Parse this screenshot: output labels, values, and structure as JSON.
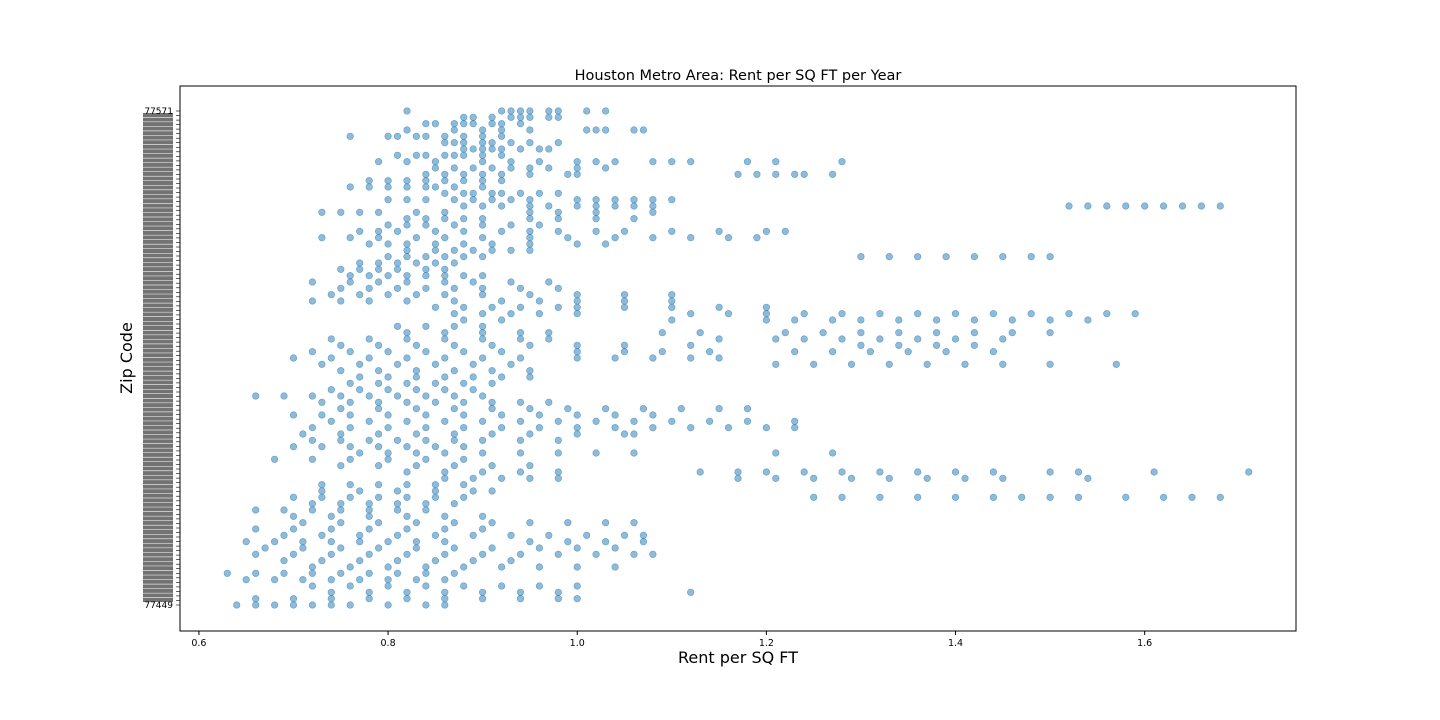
{
  "chart_data": {
    "type": "scatter",
    "title": "Houston Metro Area: Rent per SQ FT per Year",
    "xlabel": "Rent per SQ FT",
    "ylabel": "Zip Code",
    "xlim": [
      0.58,
      1.76
    ],
    "x_ticks": [
      "0.6",
      "0.8",
      "1.0",
      "1.2",
      "1.4",
      "1.6"
    ],
    "grid": false,
    "marker_color": "#1f77b4",
    "marker_alpha": 0.5,
    "visible_zip_labels": {
      "top": "77571",
      "bottom": "77449"
    },
    "zip_label_count": 110,
    "rows": [
      {
        "x": [
          0.82,
          0.92,
          0.93,
          0.94,
          0.95,
          0.97,
          0.98,
          1.01,
          1.03
        ]
      },
      {
        "x": [
          0.88,
          0.89,
          0.91,
          0.93,
          0.94,
          0.95,
          0.97,
          0.98
        ]
      },
      {
        "x": [
          0.84,
          0.85,
          0.87,
          0.88,
          0.89,
          0.91,
          0.92,
          0.94
        ]
      },
      {
        "x": [
          0.82,
          0.87,
          0.9,
          0.92,
          0.95,
          1.01,
          1.02,
          1.03,
          1.06,
          1.07
        ]
      },
      {
        "x": [
          0.76,
          0.8,
          0.81,
          0.83,
          0.84,
          0.86,
          0.88,
          0.9,
          0.92
        ]
      },
      {
        "x": [
          0.86,
          0.87,
          0.88,
          0.9,
          0.91,
          0.93,
          0.95,
          0.98
        ]
      },
      {
        "x": [
          0.88,
          0.89,
          0.9,
          0.91,
          0.92,
          0.94,
          0.96,
          0.97
        ]
      },
      {
        "x": [
          0.81,
          0.83,
          0.84,
          0.86,
          0.87,
          0.88,
          0.9,
          0.92
        ]
      },
      {
        "x": [
          0.79,
          0.82,
          0.85,
          0.9,
          0.93,
          0.96,
          1.0,
          1.02,
          1.04,
          1.08,
          1.1,
          1.12,
          1.18,
          1.21,
          1.28
        ]
      },
      {
        "x": [
          0.85,
          0.87,
          0.89,
          0.91,
          0.93,
          0.95,
          0.97,
          1.0,
          1.03
        ]
      },
      {
        "x": [
          0.84,
          0.86,
          0.88,
          0.9,
          0.92,
          0.95,
          0.99,
          1.0,
          1.17,
          1.19,
          1.21,
          1.23,
          1.24,
          1.27
        ]
      },
      {
        "x": [
          0.78,
          0.8,
          0.82,
          0.84,
          0.86,
          0.88,
          0.9,
          0.92
        ]
      },
      {
        "x": [
          0.76,
          0.78,
          0.8,
          0.82,
          0.84,
          0.85,
          0.87,
          0.9
        ]
      },
      {
        "x": [
          0.86,
          0.88,
          0.89,
          0.91,
          0.92,
          0.94,
          0.96,
          0.98
        ]
      },
      {
        "x": [
          0.8,
          0.82,
          0.84,
          0.87,
          0.89,
          0.91,
          0.93,
          0.95,
          1.0,
          1.02,
          1.04,
          1.06,
          1.08,
          1.1
        ]
      },
      {
        "x": [
          0.88,
          0.9,
          0.92,
          0.95,
          0.97,
          1.0,
          1.02,
          1.04,
          1.06,
          1.08,
          1.52,
          1.54,
          1.56,
          1.58,
          1.6,
          1.62,
          1.64,
          1.66,
          1.68
        ]
      },
      {
        "x": [
          0.73,
          0.75,
          0.77,
          0.79,
          0.83,
          0.86,
          0.95,
          0.98,
          1.02,
          1.08
        ]
      },
      {
        "x": [
          0.82,
          0.84,
          0.86,
          0.88,
          0.9,
          0.95,
          0.98,
          1.02,
          1.06
        ]
      },
      {
        "x": [
          0.8,
          0.82,
          0.84,
          0.87,
          0.9,
          0.93,
          0.96
        ]
      },
      {
        "x": [
          0.77,
          0.79,
          0.81,
          0.85,
          0.88,
          0.92,
          0.95,
          0.98,
          1.02,
          1.05,
          1.1,
          1.15,
          1.2,
          1.22
        ]
      },
      {
        "x": [
          0.73,
          0.76,
          0.79,
          0.83,
          0.86,
          0.9,
          0.95,
          0.99,
          1.04,
          1.08,
          1.12,
          1.16,
          1.19
        ]
      },
      {
        "x": [
          0.78,
          0.8,
          0.82,
          0.85,
          0.88,
          0.91,
          0.95,
          1.0,
          1.03
        ]
      },
      {
        "x": [
          0.82,
          0.85,
          0.87,
          0.89,
          0.91,
          0.93,
          0.95
        ]
      },
      {
        "x": [
          0.8,
          0.82,
          0.84,
          0.86,
          0.88,
          0.9,
          1.3,
          1.33,
          1.36,
          1.39,
          1.42,
          1.45,
          1.48,
          1.5
        ]
      },
      {
        "x": [
          0.77,
          0.79,
          0.81,
          0.83,
          0.85,
          0.87
        ]
      },
      {
        "x": [
          0.75,
          0.77,
          0.79,
          0.81,
          0.84,
          0.86
        ]
      },
      {
        "x": [
          0.76,
          0.78,
          0.8,
          0.82,
          0.84,
          0.86,
          0.88,
          0.9
        ]
      },
      {
        "x": [
          0.72,
          0.76,
          0.79,
          0.82,
          0.86,
          0.89,
          0.93,
          0.97
        ]
      },
      {
        "x": [
          0.75,
          0.78,
          0.81,
          0.84,
          0.87,
          0.9,
          0.94,
          0.98
        ]
      },
      {
        "x": [
          0.74,
          0.77,
          0.8,
          0.83,
          0.86,
          0.9,
          0.95,
          1.0,
          1.05,
          1.1
        ]
      },
      {
        "x": [
          0.72,
          0.75,
          0.78,
          0.82,
          0.87,
          0.92,
          0.96,
          1.0,
          1.05,
          1.1
        ]
      },
      {
        "x": [
          0.85,
          0.88,
          0.91,
          0.94,
          0.98,
          1.0,
          1.05,
          1.1,
          1.15,
          1.2
        ]
      },
      {
        "x": [
          0.87,
          0.9,
          0.93,
          0.96,
          1.0,
          1.12,
          1.16,
          1.2,
          1.24,
          1.28,
          1.32,
          1.36,
          1.4,
          1.44,
          1.48,
          1.52,
          1.56,
          1.59
        ]
      },
      {
        "x": [
          0.88,
          0.92,
          1.1,
          1.2,
          1.23,
          1.27,
          1.3,
          1.34,
          1.38,
          1.42,
          1.46,
          1.5,
          1.54
        ]
      },
      {
        "x": [
          0.81,
          0.84,
          0.87,
          0.9
        ]
      },
      {
        "x": [
          0.82,
          0.86,
          0.9,
          0.94,
          0.97,
          1.09,
          1.13,
          1.22,
          1.26,
          1.3,
          1.34,
          1.38,
          1.42,
          1.46,
          1.5
        ]
      },
      {
        "x": [
          0.74,
          0.78,
          0.82,
          0.86,
          0.9,
          0.94,
          0.97,
          1.15,
          1.21,
          1.24,
          1.28,
          1.32,
          1.36,
          1.4,
          1.45
        ]
      },
      {
        "x": [
          0.75,
          0.79,
          0.83,
          0.87,
          0.91,
          0.95,
          1.0,
          1.05,
          1.12,
          1.3,
          1.34,
          1.38,
          1.42
        ]
      },
      {
        "x": [
          0.72,
          0.76,
          0.8,
          0.84,
          0.88,
          0.92,
          1.0,
          1.05,
          1.09,
          1.14,
          1.23,
          1.27,
          1.31,
          1.35,
          1.39,
          1.44
        ]
      },
      {
        "x": [
          0.7,
          0.74,
          0.78,
          0.82,
          0.86,
          0.9,
          0.94,
          1.0,
          1.04,
          1.08,
          1.12,
          1.15
        ]
      },
      {
        "x": [
          0.73,
          0.77,
          0.81,
          0.85,
          0.89,
          0.93,
          1.21,
          1.25,
          1.29,
          1.33,
          1.37,
          1.41,
          1.45,
          1.5,
          1.57
        ]
      },
      {
        "x": [
          0.75,
          0.79,
          0.83,
          0.87,
          0.91,
          0.95
        ]
      },
      {
        "x": [
          0.77,
          0.8,
          0.83,
          0.86,
          0.89,
          0.92,
          0.95
        ]
      },
      {
        "x": [
          0.76,
          0.79,
          0.82,
          0.85,
          0.88,
          0.91
        ]
      },
      {
        "x": [
          0.74,
          0.77,
          0.8,
          0.83,
          0.86,
          0.89
        ]
      },
      {
        "x": [
          0.66,
          0.69,
          0.72,
          0.75,
          0.78,
          0.81,
          0.84,
          0.87,
          0.9
        ]
      },
      {
        "x": [
          0.73,
          0.76,
          0.79,
          0.82,
          0.85,
          0.88,
          0.91,
          0.94,
          0.97
        ]
      },
      {
        "x": [
          0.75,
          0.79,
          0.83,
          0.87,
          0.91,
          0.95,
          0.99,
          1.03,
          1.07,
          1.11,
          1.15,
          1.18
        ]
      },
      {
        "x": [
          0.7,
          0.73,
          0.76,
          0.8,
          0.84,
          0.88,
          0.92,
          0.96,
          1.0,
          1.04,
          1.08
        ]
      },
      {
        "x": [
          0.74,
          0.78,
          0.82,
          0.86,
          0.9,
          0.94,
          0.98,
          1.02,
          1.06,
          1.1,
          1.14,
          1.18,
          1.23
        ]
      },
      {
        "x": [
          0.72,
          0.76,
          0.8,
          0.84,
          0.88,
          0.92,
          0.96,
          1.0,
          1.04,
          1.08,
          1.12,
          1.16,
          1.2,
          1.23
        ]
      },
      {
        "x": [
          0.71,
          0.75,
          0.79,
          0.83,
          0.87,
          0.91,
          0.95,
          1.0,
          1.05,
          1.06
        ]
      },
      {
        "x": [
          0.72,
          0.75,
          0.78,
          0.81,
          0.84,
          0.87,
          0.9,
          0.94,
          0.98
        ]
      },
      {
        "x": [
          0.7,
          0.73,
          0.76,
          0.79,
          0.82,
          0.85,
          0.88
        ]
      },
      {
        "x": [
          0.77,
          0.8,
          0.83,
          0.86,
          0.9,
          0.94,
          0.98,
          1.02,
          1.06,
          1.21,
          1.27
        ]
      },
      {
        "x": [
          0.68,
          0.72,
          0.76,
          0.8,
          0.84,
          0.88
        ]
      },
      {
        "x": [
          0.75,
          0.79,
          0.83,
          0.87,
          0.91,
          0.95
        ]
      },
      {
        "x": [
          0.82,
          0.86,
          0.9,
          0.94,
          0.98,
          1.13,
          1.17,
          1.2,
          1.24,
          1.28,
          1.32,
          1.36,
          1.4,
          1.44,
          1.5,
          1.53,
          1.61,
          1.71
        ]
      },
      {
        "x": [
          0.86,
          0.89,
          0.92,
          0.95,
          0.98,
          1.17,
          1.21,
          1.25,
          1.29,
          1.33,
          1.37,
          1.41,
          1.45,
          1.54
        ]
      },
      {
        "x": [
          0.73,
          0.76,
          0.79,
          0.82,
          0.85,
          0.88
        ]
      },
      {
        "x": [
          0.73,
          0.77,
          0.81,
          0.85,
          0.89,
          0.91
        ]
      },
      {
        "x": [
          0.7,
          0.73,
          0.76,
          0.79,
          0.82,
          0.85,
          0.88,
          1.25,
          1.28,
          1.32,
          1.36,
          1.4,
          1.44,
          1.47,
          1.5,
          1.53,
          1.58,
          1.62,
          1.65,
          1.68
        ]
      },
      {
        "x": [
          0.72,
          0.75,
          0.78,
          0.81,
          0.84,
          0.87
        ]
      },
      {
        "x": [
          0.66,
          0.69,
          0.72,
          0.75,
          0.78,
          0.81,
          0.84
        ]
      },
      {
        "x": [
          0.7,
          0.74,
          0.78,
          0.82,
          0.86,
          0.9
        ]
      },
      {
        "x": [
          0.71,
          0.75,
          0.79,
          0.83,
          0.87,
          0.91,
          0.95,
          0.99,
          1.03,
          1.06
        ]
      },
      {
        "x": [
          0.66,
          0.7,
          0.74,
          0.78,
          0.82,
          0.86,
          0.9
        ]
      },
      {
        "x": [
          0.69,
          0.73,
          0.77,
          0.81,
          0.85,
          0.89,
          0.93,
          0.97,
          1.01,
          1.05,
          1.07
        ]
      },
      {
        "x": [
          0.65,
          0.68,
          0.71,
          0.74,
          0.77,
          0.8,
          0.83,
          0.86,
          0.95,
          0.99,
          1.03,
          1.07
        ]
      },
      {
        "x": [
          0.67,
          0.71,
          0.75,
          0.79,
          0.83,
          0.87,
          0.91,
          0.96,
          1.0,
          1.04
        ]
      },
      {
        "x": [
          0.66,
          0.7,
          0.74,
          0.78,
          0.82,
          0.86,
          0.9,
          0.94,
          0.98,
          1.02,
          1.06,
          1.08
        ]
      },
      {
        "x": [
          0.69,
          0.73,
          0.77,
          0.81,
          0.85,
          0.89,
          0.93
        ]
      },
      {
        "x": [
          0.72,
          0.76,
          0.8,
          0.84,
          0.88,
          0.92,
          0.96,
          1.0,
          1.04
        ]
      },
      {
        "x": [
          0.63,
          0.66,
          0.69,
          0.72,
          0.75,
          0.78,
          0.81,
          0.84,
          0.87
        ]
      },
      {
        "x": [
          0.65,
          0.68,
          0.71,
          0.74,
          0.77,
          0.8,
          0.83,
          0.86
        ]
      },
      {
        "x": [
          0.72,
          0.76,
          0.8,
          0.84,
          0.88,
          0.92,
          0.96,
          1.0
        ]
      },
      {
        "x": [
          0.74,
          0.78,
          0.82,
          0.86,
          0.9,
          0.94,
          0.98,
          1.12
        ]
      },
      {
        "x": [
          0.66,
          0.7,
          0.74,
          0.78,
          0.82,
          0.86,
          0.9,
          0.94,
          0.98,
          1.0
        ]
      },
      {
        "x": [
          0.64,
          0.66,
          0.68,
          0.7,
          0.72,
          0.74,
          0.76,
          0.8,
          0.84,
          0.86
        ]
      }
    ]
  }
}
